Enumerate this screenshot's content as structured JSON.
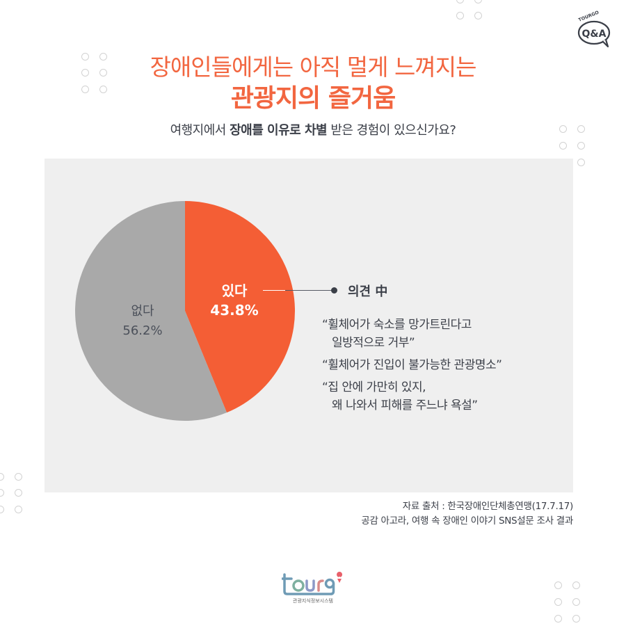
{
  "header": {
    "badge_brand": "TOURGO",
    "badge_label": "Q&A",
    "title_line1": "장애인들에게는 아직 멀게 느껴지는",
    "title_line2": "관광지의 즐거움",
    "question_parts": [
      "여행지에서 ",
      "장애를 이유로 차별",
      " 받은 경험이 있으신가요?"
    ]
  },
  "chart_data": {
    "type": "pie",
    "title": "여행지에서 장애를 이유로 차별 받은 경험이 있으신가요?",
    "categories": [
      "있다",
      "없다"
    ],
    "values": [
      43.8,
      56.2
    ],
    "value_labels": [
      "43.8%",
      "56.2%"
    ],
    "colors": [
      "#f45e35",
      "#a9a9a9"
    ],
    "start_angle_deg": 0,
    "direction": "clockwise",
    "legend": "none",
    "annotation": {
      "attached_to": "있다",
      "title": "의견 中",
      "items": [
        [
          "“휠체어가 숙소를 망가트린다고",
          "일방적으로 거부”"
        ],
        [
          "“휠체어가 진입이 불가능한 관광명소”"
        ],
        [
          "“집 안에 가만히 있지,",
          "왜 나와서 피해를 주느냐 욕설”"
        ]
      ]
    }
  },
  "pie_labels": {
    "yes_name": "있다",
    "yes_value": "43.8%",
    "no_name": "없다",
    "no_value": "56.2%"
  },
  "opinion": {
    "title": "의견 中",
    "q1_l1": "“휠체어가 숙소를 망가트린다고",
    "q1_l2": "일방적으로 거부”",
    "q2_l1": "“휠체어가 진입이 불가능한 관광명소”",
    "q3_l1": "“집 안에 가만히 있지,",
    "q3_l2": "왜 나와서 피해를 주느냐 욕설”"
  },
  "source": {
    "line1": "자료 출처 : 한국장애인단체총연맹(17.7.17)",
    "line2": "공감 아고라, 여행 속 장애인 이야기 SNS설문 조사 결과"
  },
  "footer": {
    "logo_text": "tourg",
    "logo_sub": "관광지식정보시스템"
  },
  "colors": {
    "accent": "#f26640",
    "pie_yes": "#f45e35",
    "pie_no": "#a9a9a9",
    "panel_bg": "#efefef",
    "text": "#3b3f48"
  }
}
